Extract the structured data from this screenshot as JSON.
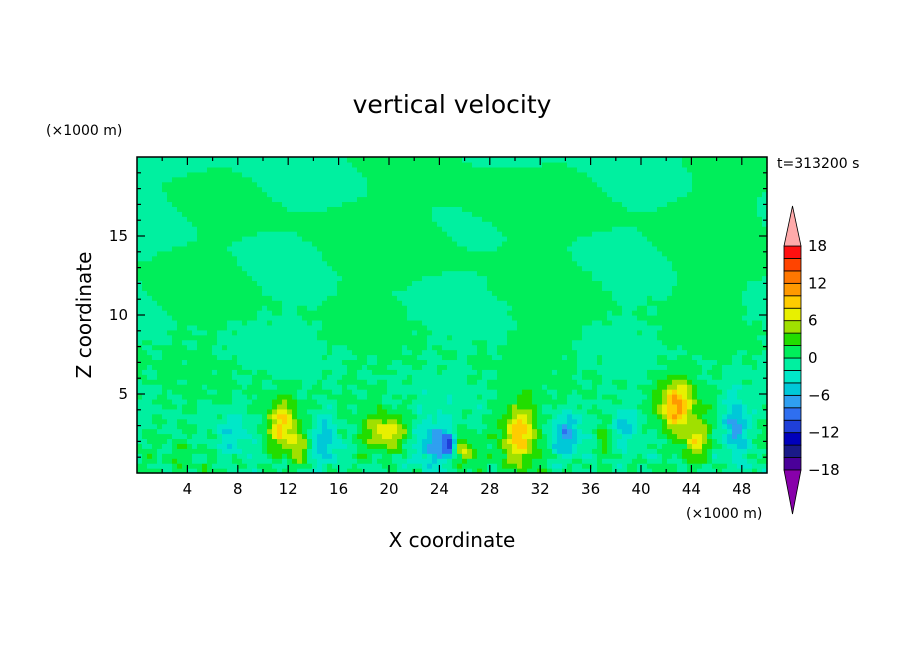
{
  "chart_data": {
    "type": "heatmap",
    "title": "vertical velocity",
    "xlabel": "X coordinate",
    "ylabel": "Z coordinate",
    "x_unit": "(×1000 m)",
    "y_unit": "(×1000 m)",
    "time_label": "t=313200 s",
    "xlim": [
      0,
      50
    ],
    "ylim": [
      0,
      20
    ],
    "x_ticks": [
      4,
      8,
      12,
      16,
      20,
      24,
      28,
      32,
      36,
      40,
      44,
      48
    ],
    "y_ticks": [
      5,
      10,
      15
    ],
    "colorbar": {
      "labels": [
        "18",
        "12",
        "6",
        "0",
        "−6",
        "−12",
        "−18"
      ],
      "label_values": [
        18,
        12,
        6,
        0,
        -6,
        -12,
        -18
      ],
      "levels": [
        -20,
        -18,
        -16,
        -14,
        -12,
        -10,
        -8,
        -6,
        -4,
        -2,
        0,
        2,
        4,
        6,
        8,
        10,
        12,
        14,
        16,
        18,
        20
      ],
      "colors": [
        "#8800aa",
        "#4a0099",
        "#1a1a88",
        "#0000bb",
        "#1f3fd8",
        "#2f6ff0",
        "#2f9ff0",
        "#00c8d8",
        "#00e8c8",
        "#00f0a0",
        "#00ee5a",
        "#22dd00",
        "#a0e000",
        "#e8f000",
        "#ffcc00",
        "#ff9900",
        "#ff7700",
        "#ff4400",
        "#ff1010",
        "#ffaaaa"
      ]
    },
    "features": [
      {
        "x": 11.5,
        "z": 3.0,
        "sx": 1.3,
        "sz": 1.6,
        "amp": 9
      },
      {
        "x": 12.8,
        "z": 1.6,
        "sx": 0.9,
        "sz": 1.0,
        "amp": 5
      },
      {
        "x": 19.8,
        "z": 2.6,
        "sx": 1.6,
        "sz": 1.1,
        "amp": 7
      },
      {
        "x": 26.0,
        "z": 1.4,
        "sx": 0.8,
        "sz": 0.9,
        "amp": 6
      },
      {
        "x": 30.4,
        "z": 2.6,
        "sx": 1.4,
        "sz": 1.8,
        "amp": 9
      },
      {
        "x": 37.0,
        "z": 2.5,
        "sx": 0.7,
        "sz": 1.2,
        "amp": 5
      },
      {
        "x": 42.8,
        "z": 4.4,
        "sx": 1.4,
        "sz": 1.6,
        "amp": 10
      },
      {
        "x": 44.3,
        "z": 2.0,
        "sx": 1.1,
        "sz": 1.2,
        "amp": 6
      },
      {
        "x": 15.0,
        "z": 2.2,
        "sx": 1.2,
        "sz": 1.8,
        "amp": -5
      },
      {
        "x": 23.5,
        "z": 2.0,
        "sx": 1.4,
        "sz": 1.4,
        "amp": -7
      },
      {
        "x": 24.8,
        "z": 1.8,
        "sx": 0.5,
        "sz": 0.7,
        "amp": -9
      },
      {
        "x": 34.0,
        "z": 2.4,
        "sx": 1.2,
        "sz": 1.4,
        "amp": -6
      },
      {
        "x": 38.5,
        "z": 3.2,
        "sx": 1.3,
        "sz": 1.0,
        "amp": -4
      },
      {
        "x": 47.5,
        "z": 3.0,
        "sx": 0.9,
        "sz": 1.8,
        "amp": -8
      },
      {
        "x": 7.5,
        "z": 2.4,
        "sx": 1.5,
        "sz": 1.4,
        "amp": -3
      },
      {
        "x": 17.5,
        "z": 14.5,
        "sx": 4.0,
        "sz": 3.0,
        "amp": 1.0
      },
      {
        "x": 28.0,
        "z": 16.5,
        "sx": 5.0,
        "sz": 2.5,
        "amp": 1.0
      },
      {
        "x": 45.0,
        "z": 15.0,
        "sx": 4.0,
        "sz": 4.0,
        "amp": 1.0
      },
      {
        "x": 33.0,
        "z": 10.0,
        "sx": 3.0,
        "sz": 2.5,
        "amp": 1.0
      },
      {
        "x": 4.0,
        "z": 12.0,
        "sx": 3.0,
        "sz": 2.5,
        "amp": 1.0
      }
    ]
  }
}
